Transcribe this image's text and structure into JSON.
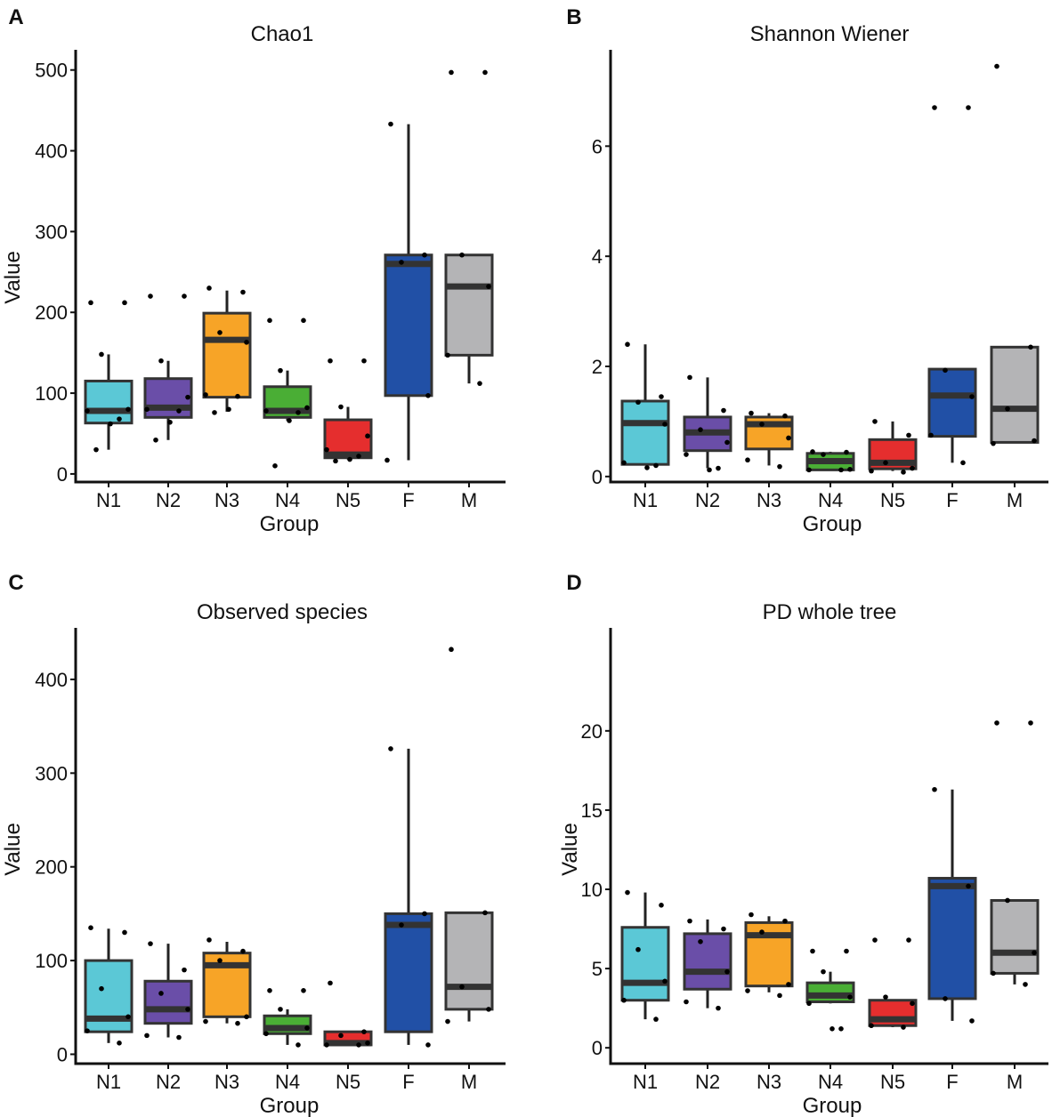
{
  "chart_data": [
    {
      "type": "box",
      "panel_letter": "A",
      "title": "Chao1",
      "xlabel": "Group",
      "ylabel": "Value",
      "ylim": [
        -10,
        525
      ],
      "yticks": [
        0,
        100,
        200,
        300,
        400,
        500
      ],
      "ytick_labels": [
        "0",
        "100",
        "200",
        "300",
        "400",
        "500"
      ],
      "categories": [
        "N1",
        "N2",
        "N3",
        "N4",
        "N5",
        "F",
        "M"
      ],
      "colors": [
        "#5bc8d6",
        "#6a4ea8",
        "#f7a427",
        "#4aae35",
        "#e52e2e",
        "#2150a6",
        "#b4b4b6"
      ],
      "boxes": [
        {
          "whisker_low": 30,
          "q1": 63,
          "median": 78,
          "q3": 115,
          "whisker_high": 148
        },
        {
          "whisker_low": 42,
          "q1": 70,
          "median": 82,
          "q3": 118,
          "whisker_high": 140
        },
        {
          "whisker_low": 77,
          "q1": 95,
          "median": 166,
          "q3": 199,
          "whisker_high": 227
        },
        {
          "whisker_low": 66,
          "q1": 70,
          "median": 78,
          "q3": 108,
          "whisker_high": 128
        },
        {
          "whisker_low": 18,
          "q1": 20,
          "median": 24,
          "q3": 67,
          "whisker_high": 83
        },
        {
          "whisker_low": 17,
          "q1": 97,
          "median": 260,
          "q3": 271,
          "whisker_high": 433
        },
        {
          "whisker_low": 112,
          "q1": 147,
          "median": 232,
          "q3": 271,
          "whisker_high": 271
        }
      ],
      "points": [
        {
          "x": "N1",
          "values": [
            212,
            212,
            148,
            80,
            78,
            68,
            62,
            30
          ]
        },
        {
          "x": "N2",
          "values": [
            220,
            220,
            140,
            95,
            80,
            78,
            64,
            42
          ]
        },
        {
          "x": "N3",
          "values": [
            230,
            225,
            175,
            163,
            98,
            96,
            80,
            76
          ]
        },
        {
          "x": "N4",
          "values": [
            190,
            190,
            128,
            82,
            78,
            76,
            66,
            10
          ]
        },
        {
          "x": "N5",
          "values": [
            140,
            140,
            83,
            47,
            30,
            22,
            18,
            16
          ]
        },
        {
          "x": "F",
          "values": [
            433,
            271,
            262,
            97,
            17
          ]
        },
        {
          "x": "M",
          "values": [
            497,
            497,
            271,
            232,
            147,
            112
          ]
        }
      ]
    },
    {
      "type": "box",
      "panel_letter": "B",
      "title": "Shannon Wiener",
      "xlabel": "Group",
      "ylabel": "",
      "ylim": [
        -0.1,
        7.75
      ],
      "yticks": [
        0,
        2,
        4,
        6
      ],
      "ytick_labels": [
        "0",
        "2",
        "4",
        "6"
      ],
      "categories": [
        "N1",
        "N2",
        "N3",
        "N4",
        "N5",
        "F",
        "M"
      ],
      "colors": [
        "#5bc8d6",
        "#6a4ea8",
        "#f7a427",
        "#4aae35",
        "#e52e2e",
        "#2150a6",
        "#b4b4b6"
      ],
      "boxes": [
        {
          "whisker_low": 0.2,
          "q1": 0.22,
          "median": 0.97,
          "q3": 1.37,
          "whisker_high": 2.4
        },
        {
          "whisker_low": 0.15,
          "q1": 0.47,
          "median": 0.8,
          "q3": 1.08,
          "whisker_high": 1.8
        },
        {
          "whisker_low": 0.2,
          "q1": 0.5,
          "median": 0.95,
          "q3": 1.08,
          "whisker_high": 1.15
        },
        {
          "whisker_low": 0.12,
          "q1": 0.12,
          "median": 0.28,
          "q3": 0.42,
          "whisker_high": 0.45
        },
        {
          "whisker_low": 0.1,
          "q1": 0.14,
          "median": 0.25,
          "q3": 0.67,
          "whisker_high": 1.0
        },
        {
          "whisker_low": 0.25,
          "q1": 0.73,
          "median": 1.47,
          "q3": 1.95,
          "whisker_high": 1.95
        },
        {
          "whisker_low": 0.62,
          "q1": 0.62,
          "median": 1.23,
          "q3": 2.35,
          "whisker_high": 2.35
        }
      ],
      "points": [
        {
          "x": "N1",
          "values": [
            2.4,
            1.45,
            1.35,
            0.95,
            0.25,
            0.2,
            0.16
          ]
        },
        {
          "x": "N2",
          "values": [
            1.8,
            1.2,
            0.85,
            0.62,
            0.4,
            0.15,
            0.12
          ]
        },
        {
          "x": "N3",
          "values": [
            1.15,
            1.1,
            0.95,
            0.7,
            0.3,
            0.18
          ]
        },
        {
          "x": "N4",
          "values": [
            0.45,
            0.44,
            0.4,
            0.13,
            0.12,
            0.12
          ]
        },
        {
          "x": "N5",
          "values": [
            1.0,
            0.75,
            0.25,
            0.15,
            0.1,
            0.08
          ]
        },
        {
          "x": "F",
          "values": [
            6.7,
            6.7,
            1.93,
            1.45,
            0.75,
            0.25
          ]
        },
        {
          "x": "M",
          "values": [
            7.45,
            2.35,
            1.23,
            0.65,
            0.6
          ]
        }
      ]
    },
    {
      "type": "box",
      "panel_letter": "C",
      "title": "Observed species",
      "xlabel": "Group",
      "ylabel": "Value",
      "ylim": [
        -10,
        455
      ],
      "yticks": [
        0,
        100,
        200,
        300,
        400
      ],
      "ytick_labels": [
        "0",
        "100",
        "200",
        "300",
        "400"
      ],
      "categories": [
        "N1",
        "N2",
        "N3",
        "N4",
        "N5",
        "F",
        "M"
      ],
      "colors": [
        "#5bc8d6",
        "#6a4ea8",
        "#f7a427",
        "#4aae35",
        "#e52e2e",
        "#2150a6",
        "#b4b4b6"
      ],
      "boxes": [
        {
          "whisker_low": 12,
          "q1": 24,
          "median": 38,
          "q3": 100,
          "whisker_high": 134
        },
        {
          "whisker_low": 18,
          "q1": 33,
          "median": 48,
          "q3": 78,
          "whisker_high": 118
        },
        {
          "whisker_low": 33,
          "q1": 40,
          "median": 95,
          "q3": 108,
          "whisker_high": 120
        },
        {
          "whisker_low": 10,
          "q1": 22,
          "median": 28,
          "q3": 41,
          "whisker_high": 48
        },
        {
          "whisker_low": 10,
          "q1": 10,
          "median": 12,
          "q3": 24,
          "whisker_high": 24
        },
        {
          "whisker_low": 10,
          "q1": 24,
          "median": 138,
          "q3": 150,
          "whisker_high": 326
        },
        {
          "whisker_low": 35,
          "q1": 48,
          "median": 72,
          "q3": 151,
          "whisker_high": 151
        }
      ],
      "points": [
        {
          "x": "N1",
          "values": [
            135,
            130,
            70,
            40,
            25,
            12
          ]
        },
        {
          "x": "N2",
          "values": [
            118,
            90,
            65,
            48,
            20,
            18
          ]
        },
        {
          "x": "N3",
          "values": [
            122,
            110,
            100,
            40,
            35,
            33
          ]
        },
        {
          "x": "N4",
          "values": [
            68,
            68,
            48,
            28,
            22,
            10
          ]
        },
        {
          "x": "N5",
          "values": [
            76,
            24,
            20,
            12,
            10,
            10
          ]
        },
        {
          "x": "F",
          "values": [
            326,
            150,
            138,
            10
          ]
        },
        {
          "x": "M",
          "values": [
            432,
            151,
            72,
            48,
            35
          ]
        }
      ]
    },
    {
      "type": "box",
      "panel_letter": "D",
      "title": "PD whole tree",
      "xlabel": "Group",
      "ylabel": "Value",
      "ylim": [
        -1,
        26.5
      ],
      "yticks": [
        0,
        5,
        10,
        15,
        20
      ],
      "ytick_labels": [
        "0",
        "5",
        "10",
        "15",
        "20"
      ],
      "categories": [
        "N1",
        "N2",
        "N3",
        "N4",
        "N5",
        "F",
        "M"
      ],
      "colors": [
        "#5bc8d6",
        "#6a4ea8",
        "#f7a427",
        "#4aae35",
        "#e52e2e",
        "#2150a6",
        "#b4b4b6"
      ],
      "boxes": [
        {
          "whisker_low": 1.8,
          "q1": 3.0,
          "median": 4.1,
          "q3": 7.6,
          "whisker_high": 9.8
        },
        {
          "whisker_low": 2.5,
          "q1": 3.7,
          "median": 4.8,
          "q3": 7.2,
          "whisker_high": 8.1
        },
        {
          "whisker_low": 3.5,
          "q1": 3.9,
          "median": 7.1,
          "q3": 7.9,
          "whisker_high": 8.3
        },
        {
          "whisker_low": 2.8,
          "q1": 2.9,
          "median": 3.3,
          "q3": 4.1,
          "whisker_high": 4.8
        },
        {
          "whisker_low": 1.3,
          "q1": 1.4,
          "median": 1.8,
          "q3": 3.0,
          "whisker_high": 3.0
        },
        {
          "whisker_low": 1.7,
          "q1": 3.1,
          "median": 10.2,
          "q3": 10.7,
          "whisker_high": 16.3
        },
        {
          "whisker_low": 4.0,
          "q1": 4.7,
          "median": 6.0,
          "q3": 9.3,
          "whisker_high": 9.3
        }
      ],
      "points": [
        {
          "x": "N1",
          "values": [
            9.8,
            9.0,
            6.2,
            4.2,
            3.0,
            1.8
          ]
        },
        {
          "x": "N2",
          "values": [
            8.0,
            7.5,
            6.7,
            4.8,
            2.9,
            2.5
          ]
        },
        {
          "x": "N3",
          "values": [
            8.4,
            8.0,
            7.3,
            4.0,
            3.6,
            3.3
          ]
        },
        {
          "x": "N4",
          "values": [
            6.1,
            6.1,
            4.8,
            3.2,
            2.8,
            1.2,
            1.2
          ]
        },
        {
          "x": "N5",
          "values": [
            6.8,
            6.8,
            3.2,
            2.8,
            1.4,
            1.3
          ]
        },
        {
          "x": "F",
          "values": [
            16.3,
            10.2,
            3.1,
            1.7
          ]
        },
        {
          "x": "M",
          "values": [
            20.5,
            20.5,
            9.3,
            6.0,
            4.7,
            4.0
          ]
        }
      ]
    }
  ]
}
